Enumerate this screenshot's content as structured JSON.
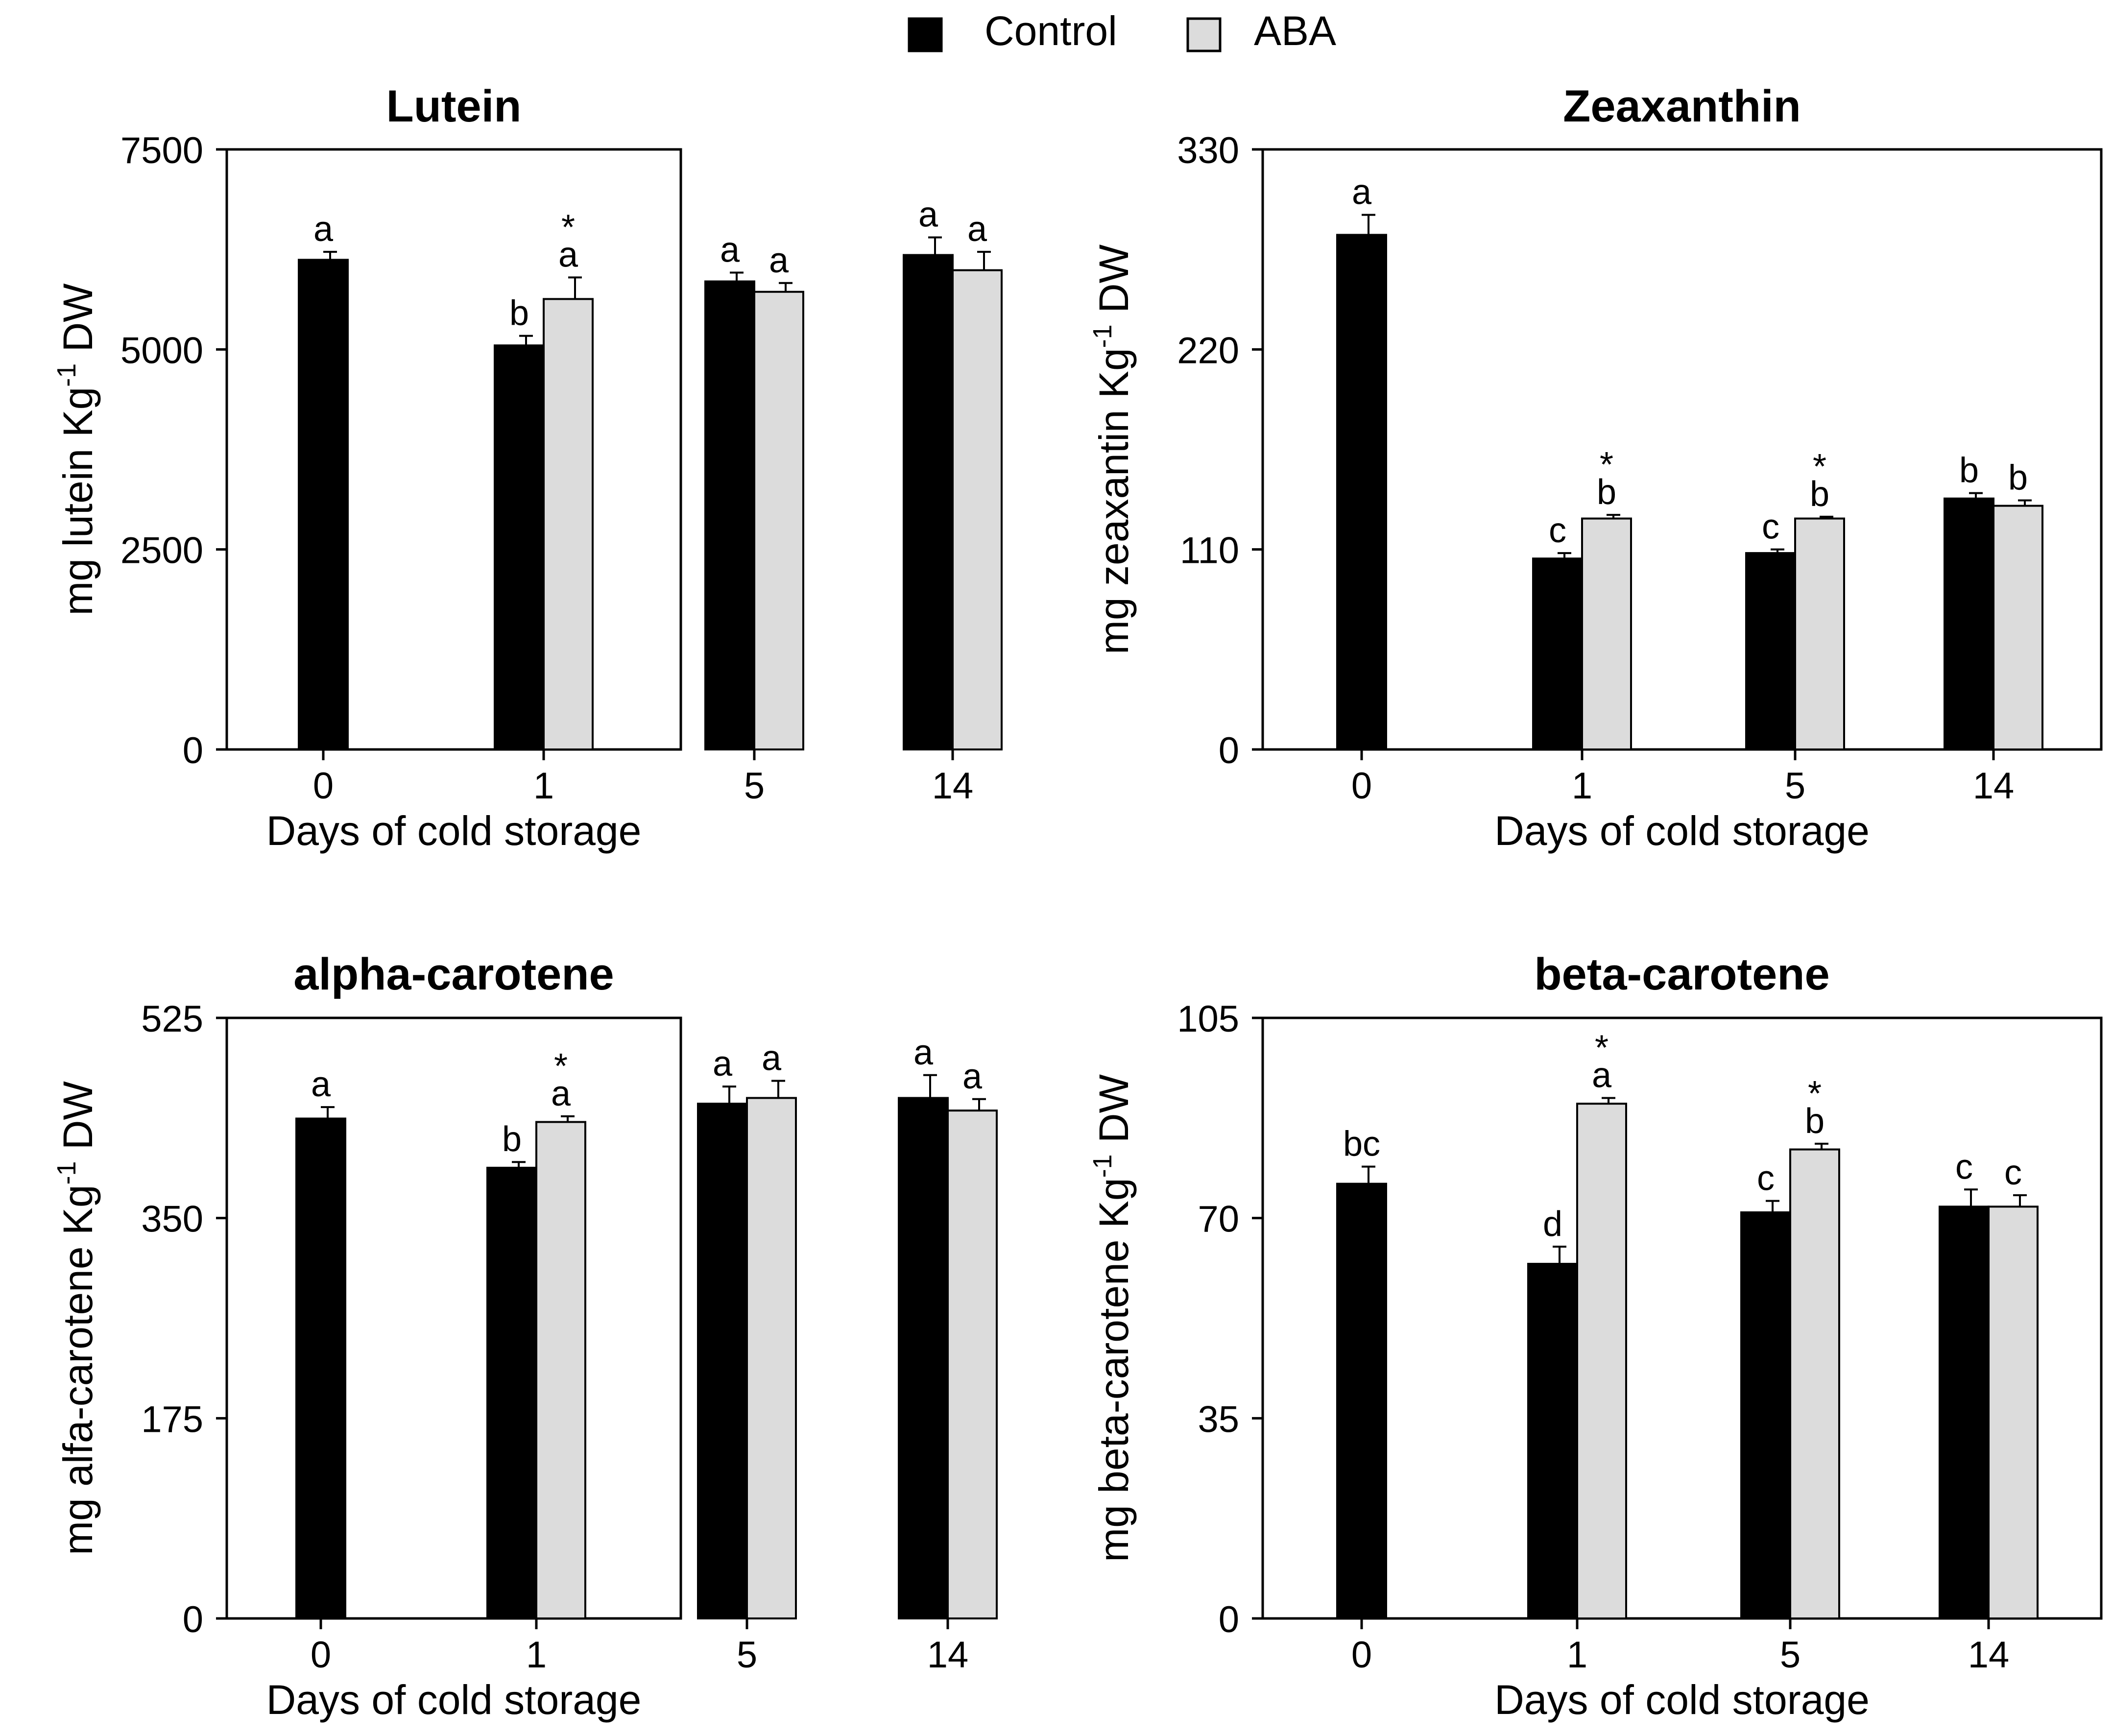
{
  "legend": {
    "control_label": "Control",
    "aba_label": "ABA",
    "control_color": "#000000",
    "aba_color": "#dcdcdc"
  },
  "chart_data": [
    {
      "type": "bar",
      "title": "Lutein",
      "xlabel": "Days of cold storage",
      "ylabel_main": "mg lutein Kg",
      "ylabel_sup": "-1",
      "ylabel_tail": " DW",
      "categories": [
        "0",
        "1",
        "5",
        "14"
      ],
      "ylim": [
        0,
        7500
      ],
      "yticks": [
        0,
        2500,
        5000,
        7500
      ],
      "ytick_labels": [
        "0",
        "2500",
        "5000",
        "7500"
      ],
      "series": [
        {
          "name": "Control",
          "values": [
            6120,
            5050,
            5850,
            6180
          ],
          "errors": [
            100,
            120,
            110,
            220
          ],
          "letters": [
            "a",
            "b",
            "a",
            "a"
          ],
          "stars": [
            false,
            false,
            false,
            false
          ]
        },
        {
          "name": "ABA",
          "values": [
            null,
            5630,
            5720,
            5990
          ],
          "errors": [
            null,
            270,
            110,
            230
          ],
          "letters": [
            null,
            "a",
            "a",
            "a"
          ],
          "stars": [
            false,
            true,
            false,
            false
          ]
        }
      ]
    },
    {
      "type": "bar",
      "title": "Zeaxanthin",
      "xlabel": "Days of cold storage",
      "ylabel_main": "mg zeaxantin Kg",
      "ylabel_sup": "-1",
      "ylabel_tail": " DW",
      "categories": [
        "0",
        "1",
        "5",
        "14"
      ],
      "ylim": [
        0,
        330
      ],
      "yticks": [
        0,
        110,
        220,
        330
      ],
      "ytick_labels": [
        "0",
        "110",
        "220",
        "330"
      ],
      "series": [
        {
          "name": "Control",
          "values": [
            283,
            105,
            108,
            138
          ],
          "errors": [
            11,
            3,
            2,
            3
          ],
          "letters": [
            "a",
            "c",
            "c",
            "b"
          ],
          "stars": [
            false,
            false,
            false,
            false
          ]
        },
        {
          "name": "ABA",
          "values": [
            null,
            127,
            127,
            134
          ],
          "errors": [
            null,
            2,
            1,
            3
          ],
          "letters": [
            null,
            "b",
            "b",
            "b"
          ],
          "stars": [
            false,
            true,
            true,
            false
          ]
        }
      ]
    },
    {
      "type": "bar",
      "title": "alpha-carotene",
      "xlabel": "Days of cold storage",
      "ylabel_main": "mg alfa-carotene Kg",
      "ylabel_sup": "-1",
      "ylabel_tail": " DW",
      "categories": [
        "0",
        "1",
        "5",
        "14"
      ],
      "ylim": [
        0,
        525
      ],
      "yticks": [
        0,
        175,
        350,
        525
      ],
      "ytick_labels": [
        "0",
        "175",
        "350",
        "525"
      ],
      "series": [
        {
          "name": "Control",
          "values": [
            437,
            394,
            450,
            455
          ],
          "errors": [
            10,
            5,
            15,
            20
          ],
          "letters": [
            "a",
            "b",
            "a",
            "a"
          ],
          "stars": [
            false,
            false,
            false,
            false
          ]
        },
        {
          "name": "ABA",
          "values": [
            null,
            434,
            455,
            444
          ],
          "errors": [
            null,
            5,
            15,
            10
          ],
          "letters": [
            null,
            "a",
            "a",
            "a"
          ],
          "stars": [
            false,
            true,
            false,
            false
          ]
        }
      ]
    },
    {
      "type": "bar",
      "title": "beta-carotene",
      "xlabel": "Days of cold storage",
      "ylabel_main": "mg beta-carotene Kg",
      "ylabel_sup": "-1",
      "ylabel_tail": " DW",
      "categories": [
        "0",
        "1",
        "5",
        "14"
      ],
      "ylim": [
        0,
        105
      ],
      "yticks": [
        0,
        35,
        70,
        105
      ],
      "ytick_labels": [
        "0",
        "35",
        "70",
        "105"
      ],
      "series": [
        {
          "name": "Control",
          "values": [
            76,
            62,
            71,
            72
          ],
          "errors": [
            3,
            3,
            2,
            3
          ],
          "letters": [
            "bc",
            "d",
            "c",
            "c"
          ],
          "stars": [
            false,
            false,
            false,
            false
          ]
        },
        {
          "name": "ABA",
          "values": [
            null,
            90,
            82,
            72
          ],
          "errors": [
            null,
            1,
            1,
            2
          ],
          "letters": [
            null,
            "a",
            "b",
            "c"
          ],
          "stars": [
            false,
            true,
            true,
            false
          ]
        }
      ]
    }
  ]
}
